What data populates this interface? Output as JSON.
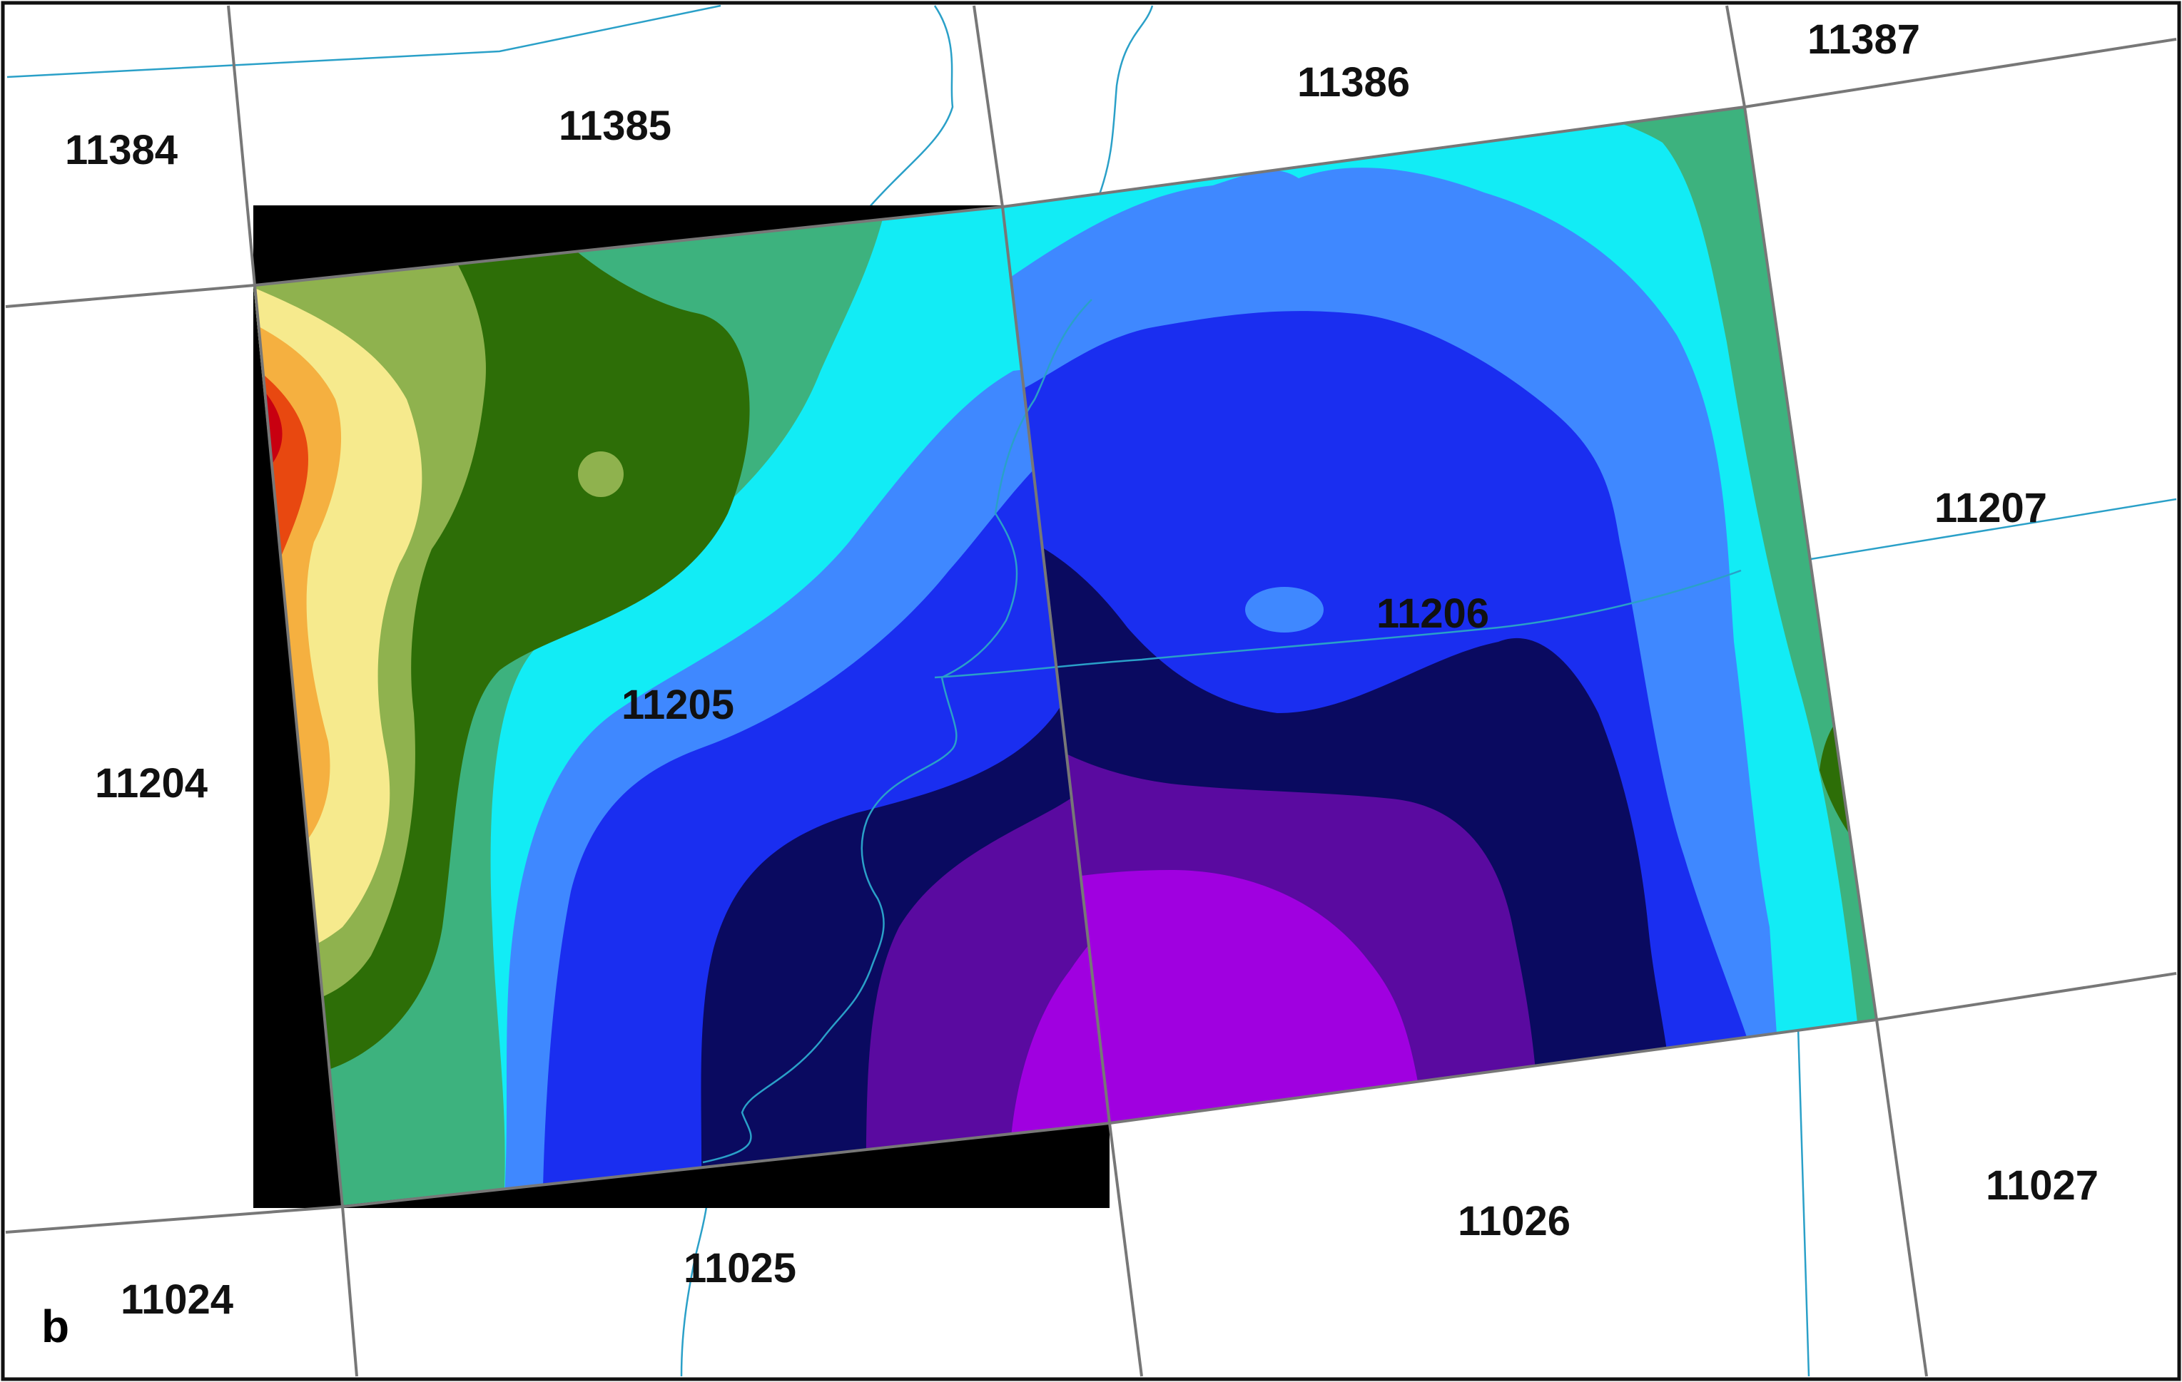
{
  "panel_label": "b",
  "tiles": [
    {
      "id": "11384",
      "label": "11384"
    },
    {
      "id": "11385",
      "label": "11385"
    },
    {
      "id": "11386",
      "label": "11386"
    },
    {
      "id": "11387",
      "label": "11387"
    },
    {
      "id": "11204",
      "label": "11204"
    },
    {
      "id": "11205",
      "label": "11205"
    },
    {
      "id": "11206",
      "label": "11206"
    },
    {
      "id": "11207",
      "label": "11207"
    },
    {
      "id": "11024",
      "label": "11024"
    },
    {
      "id": "11025",
      "label": "11025"
    },
    {
      "id": "11026",
      "label": "11026"
    },
    {
      "id": "11027",
      "label": "11027"
    }
  ],
  "colors": {
    "background": "#ffffff",
    "grid_line": "#777777",
    "river": "#2aa0c8",
    "nodata": "#000000",
    "elevation_ramp": [
      "#a000e0",
      "#5a0aa0",
      "#0a0a60",
      "#0000d8",
      "#1a2ef0",
      "#3f88ff",
      "#12ecf5",
      "#3db27e",
      "#2d6e07",
      "#8fb24e",
      "#f6ea8d",
      "#f5b040",
      "#e84810",
      "#c80010"
    ]
  }
}
